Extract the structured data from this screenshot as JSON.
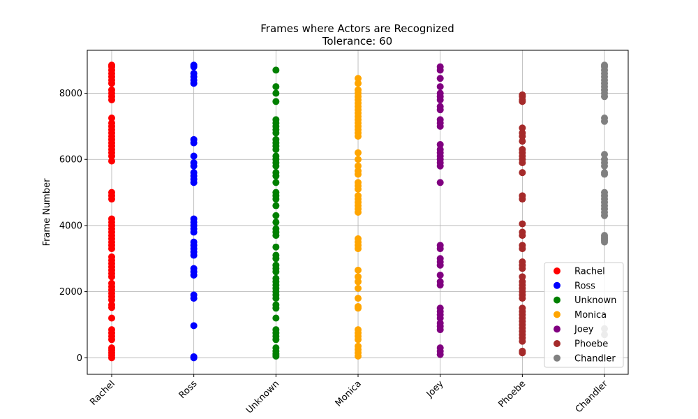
{
  "chart_data": {
    "type": "scatter",
    "title": "Frames where Actors are Recognized",
    "subtitle": "Tolerance: 60",
    "xlabel": "",
    "ylabel": "Frame Number",
    "categories": [
      "Rachel",
      "Ross",
      "Unknown",
      "Monica",
      "Joey",
      "Phoebe",
      "Chandler"
    ],
    "yticks": [
      0,
      2000,
      4000,
      6000,
      8000
    ],
    "ylim": [
      -500,
      9300
    ],
    "grid": true,
    "legend_position": "bottom-right",
    "series": [
      {
        "name": "Rachel",
        "color": "#ff0000",
        "category": "Rachel",
        "y": [
          0,
          80,
          150,
          230,
          300,
          550,
          650,
          750,
          850,
          1200,
          1520,
          1600,
          1750,
          1850,
          1950,
          2050,
          2150,
          2250,
          2450,
          2550,
          2650,
          2750,
          2850,
          2950,
          3050,
          3300,
          3400,
          3500,
          3600,
          3700,
          3800,
          3900,
          4000,
          4100,
          4200,
          4800,
          4900,
          5000,
          5950,
          6100,
          6200,
          6300,
          6400,
          6500,
          6600,
          6700,
          6800,
          6900,
          7000,
          7100,
          7250,
          7800,
          7900,
          8000,
          8100,
          8300,
          8400,
          8500,
          8600,
          8700,
          8800,
          8850
        ]
      },
      {
        "name": "Ross",
        "color": "#0000ff",
        "category": "Ross",
        "y": [
          0,
          30,
          970,
          1800,
          1900,
          2500,
          2600,
          2700,
          3100,
          3200,
          3300,
          3400,
          3500,
          3800,
          3900,
          4000,
          4100,
          4200,
          5300,
          5400,
          5500,
          5600,
          5800,
          5900,
          6100,
          6500,
          6600,
          8300,
          8400,
          8500,
          8600,
          8800,
          8850
        ]
      },
      {
        "name": "Unknown",
        "color": "#008000",
        "category": "Unknown",
        "y": [
          50,
          120,
          200,
          300,
          550,
          650,
          750,
          850,
          1200,
          1500,
          1600,
          1800,
          1900,
          2000,
          2100,
          2200,
          2300,
          2400,
          2600,
          2700,
          2800,
          3000,
          3100,
          3350,
          3700,
          3800,
          3900,
          4100,
          4300,
          4600,
          4800,
          4900,
          5000,
          5300,
          5500,
          5600,
          5800,
          5900,
          6000,
          6100,
          6300,
          6400,
          6500,
          6600,
          6800,
          6900,
          7000,
          7100,
          7200,
          7750,
          8000,
          8200,
          8700
        ]
      },
      {
        "name": "Monica",
        "color": "#ffa500",
        "category": "Monica",
        "y": [
          50,
          150,
          250,
          350,
          550,
          650,
          750,
          850,
          1500,
          1550,
          1800,
          2100,
          2300,
          2450,
          2650,
          3300,
          3400,
          3500,
          3600,
          4400,
          4500,
          4600,
          4700,
          4800,
          4900,
          5100,
          5200,
          5300,
          5550,
          5650,
          5800,
          6000,
          6200,
          6700,
          6800,
          6900,
          7000,
          7100,
          7200,
          7300,
          7400,
          7500,
          7600,
          7700,
          7800,
          7900,
          8000,
          8100,
          8300,
          8450
        ]
      },
      {
        "name": "Joey",
        "color": "#800080",
        "category": "Joey",
        "y": [
          100,
          200,
          300,
          850,
          950,
          1050,
          1200,
          1300,
          1400,
          1500,
          2200,
          2300,
          2500,
          2800,
          2900,
          3000,
          3300,
          3400,
          5300,
          5800,
          5900,
          6000,
          6100,
          6200,
          6300,
          6450,
          7000,
          7100,
          7200,
          7500,
          7600,
          7800,
          7900,
          8000,
          8200,
          8450,
          8700,
          8800
        ]
      },
      {
        "name": "Phoebe",
        "color": "#a52a2a",
        "category": "Phoebe",
        "y": [
          150,
          200,
          500,
          600,
          700,
          800,
          900,
          1000,
          1100,
          1200,
          1300,
          1400,
          1500,
          1800,
          1900,
          2000,
          2100,
          2200,
          2300,
          2450,
          2700,
          2800,
          2900,
          3300,
          3400,
          3700,
          3800,
          4050,
          4800,
          4900,
          5600,
          5900,
          6000,
          6100,
          6200,
          6300,
          6550,
          6700,
          6800,
          6950,
          7750,
          7800,
          7900,
          7950
        ]
      },
      {
        "name": "Chandler",
        "color": "#808080",
        "category": "Chandler",
        "y": [
          700,
          880,
          3500,
          3550,
          3600,
          3650,
          3700,
          4300,
          4400,
          4500,
          4600,
          4700,
          4800,
          4900,
          5000,
          5550,
          5600,
          5800,
          5900,
          6000,
          6150,
          7150,
          7250,
          7900,
          8000,
          8100,
          8200,
          8300,
          8400,
          8500,
          8600,
          8700,
          8800,
          8850
        ]
      }
    ],
    "colors": {
      "axis": "#000000",
      "grid": "#b0b0b0"
    }
  }
}
